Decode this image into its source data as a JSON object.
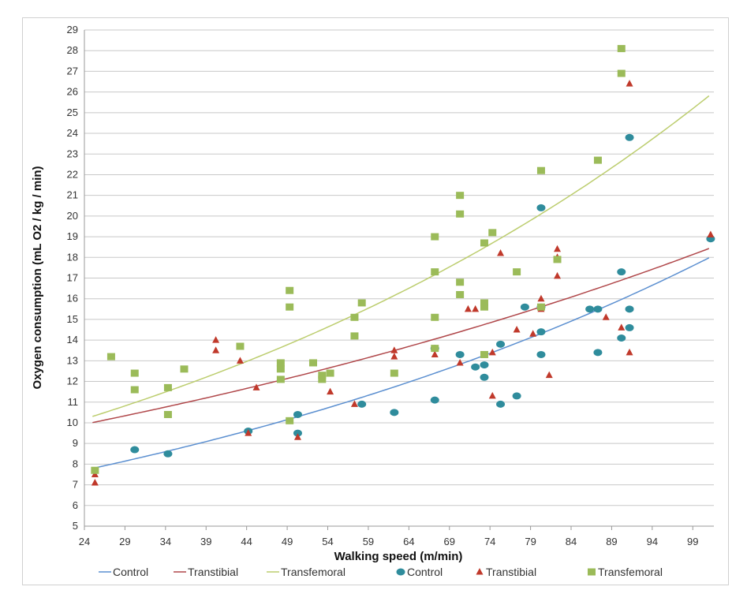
{
  "chart_data": {
    "type": "scatter",
    "title": "",
    "xlabel": "Walking speed (m/min)",
    "ylabel": "Oxygen consumption (mL O2 / kg / min)",
    "xlim": [
      24,
      101.6
    ],
    "ylim": [
      5,
      29
    ],
    "xticks": [
      24,
      29,
      34,
      39,
      44,
      49,
      54,
      59,
      64,
      69,
      74,
      79,
      84,
      89,
      94,
      99
    ],
    "yticks": [
      5,
      6,
      7,
      8,
      9,
      10,
      11,
      12,
      13,
      14,
      15,
      16,
      17,
      18,
      19,
      20,
      21,
      22,
      23,
      24,
      25,
      26,
      27,
      28,
      29
    ],
    "grid": "horizontal",
    "legend_position": "bottom",
    "colors": {
      "control_line": "#5b8fd0",
      "transtibial_line": "#b0474a",
      "transfemoral_line": "#bccd6e",
      "control_marker": "#2f8c9c",
      "transtibial_marker": "#c0392b",
      "transfemoral_marker": "#9bbb59"
    },
    "trendlines": [
      {
        "name": "Control",
        "type": "exponential",
        "a": 5.92,
        "b": 0.011,
        "x_range": [
          25,
          101
        ],
        "color_key": "control_line"
      },
      {
        "name": "Transtibial",
        "type": "exponential",
        "a": 8.19,
        "b": 0.00803,
        "x_range": [
          25,
          101
        ],
        "color_key": "transtibial_line"
      },
      {
        "name": "Transfemoral",
        "type": "exponential",
        "a": 7.62,
        "b": 0.01208,
        "x_range": [
          25,
          101
        ],
        "color_key": "transfemoral_line"
      }
    ],
    "series": [
      {
        "name": "Control",
        "marker": "circle",
        "color_key": "control_marker",
        "points": [
          [
            30.2,
            8.7
          ],
          [
            34.3,
            8.5
          ],
          [
            44.2,
            9.6
          ],
          [
            50.3,
            10.4
          ],
          [
            50.3,
            9.5
          ],
          [
            58.2,
            10.9
          ],
          [
            62.2,
            10.5
          ],
          [
            67.2,
            11.1
          ],
          [
            67.2,
            13.6
          ],
          [
            70.3,
            13.3
          ],
          [
            72.2,
            12.7
          ],
          [
            73.3,
            12.8
          ],
          [
            73.3,
            12.2
          ],
          [
            75.3,
            10.9
          ],
          [
            75.3,
            13.8
          ],
          [
            77.3,
            11.3
          ],
          [
            78.3,
            15.6
          ],
          [
            80.3,
            13.3
          ],
          [
            80.3,
            14.4
          ],
          [
            80.3,
            20.4
          ],
          [
            80.3,
            15.6
          ],
          [
            86.3,
            15.5
          ],
          [
            87.3,
            15.5
          ],
          [
            87.3,
            13.4
          ],
          [
            90.2,
            17.3
          ],
          [
            90.2,
            14.1
          ],
          [
            91.2,
            23.8
          ],
          [
            91.2,
            15.5
          ],
          [
            91.2,
            14.6
          ],
          [
            101.2,
            18.9
          ]
        ]
      },
      {
        "name": "Transtibial",
        "marker": "triangle",
        "color_key": "transtibial_marker",
        "points": [
          [
            25.3,
            7.5
          ],
          [
            25.3,
            7.1
          ],
          [
            40.2,
            14.0
          ],
          [
            40.2,
            13.5
          ],
          [
            43.2,
            13.0
          ],
          [
            44.2,
            9.5
          ],
          [
            45.2,
            11.7
          ],
          [
            50.3,
            9.3
          ],
          [
            54.3,
            11.5
          ],
          [
            57.3,
            10.9
          ],
          [
            62.2,
            13.5
          ],
          [
            62.2,
            13.2
          ],
          [
            67.2,
            13.3
          ],
          [
            70.3,
            12.9
          ],
          [
            71.3,
            15.5
          ],
          [
            72.2,
            15.5
          ],
          [
            74.3,
            13.4
          ],
          [
            74.3,
            11.3
          ],
          [
            75.3,
            18.2
          ],
          [
            77.3,
            14.5
          ],
          [
            79.3,
            14.3
          ],
          [
            80.3,
            16.0
          ],
          [
            80.3,
            15.5
          ],
          [
            81.3,
            12.3
          ],
          [
            82.3,
            18.4
          ],
          [
            82.3,
            18.0
          ],
          [
            82.3,
            17.1
          ],
          [
            88.3,
            15.1
          ],
          [
            90.2,
            14.6
          ],
          [
            91.2,
            26.4
          ],
          [
            91.2,
            13.4
          ],
          [
            101.2,
            19.1
          ]
        ]
      },
      {
        "name": "Transfemoral",
        "marker": "square",
        "color_key": "transfemoral_marker",
        "points": [
          [
            25.3,
            7.7
          ],
          [
            27.3,
            13.2
          ],
          [
            30.2,
            12.4
          ],
          [
            30.2,
            11.6
          ],
          [
            34.3,
            11.7
          ],
          [
            34.3,
            10.4
          ],
          [
            36.3,
            12.6
          ],
          [
            43.2,
            13.7
          ],
          [
            48.2,
            12.9
          ],
          [
            48.2,
            12.6
          ],
          [
            48.2,
            12.1
          ],
          [
            49.3,
            16.4
          ],
          [
            49.3,
            15.6
          ],
          [
            49.3,
            10.1
          ],
          [
            52.2,
            12.9
          ],
          [
            53.3,
            12.3
          ],
          [
            53.3,
            12.1
          ],
          [
            54.3,
            12.4
          ],
          [
            57.3,
            15.1
          ],
          [
            57.3,
            14.2
          ],
          [
            58.2,
            15.8
          ],
          [
            62.2,
            12.4
          ],
          [
            67.2,
            19.0
          ],
          [
            67.2,
            17.3
          ],
          [
            67.2,
            15.1
          ],
          [
            67.2,
            13.6
          ],
          [
            70.3,
            21.0
          ],
          [
            70.3,
            20.1
          ],
          [
            70.3,
            16.8
          ],
          [
            70.3,
            16.2
          ],
          [
            73.3,
            18.7
          ],
          [
            73.3,
            15.8
          ],
          [
            73.3,
            15.6
          ],
          [
            73.3,
            13.3
          ],
          [
            74.3,
            19.2
          ],
          [
            77.3,
            17.3
          ],
          [
            80.3,
            22.2
          ],
          [
            80.3,
            15.6
          ],
          [
            82.3,
            17.9
          ],
          [
            87.3,
            22.7
          ],
          [
            90.2,
            28.1
          ],
          [
            90.2,
            26.9
          ]
        ]
      }
    ],
    "legend": [
      {
        "label": "Control",
        "kind": "line",
        "color_key": "control_line"
      },
      {
        "label": "Transtibial",
        "kind": "line",
        "color_key": "transtibial_line"
      },
      {
        "label": "Transfemoral",
        "kind": "line",
        "color_key": "transfemoral_line"
      },
      {
        "label": "Control",
        "kind": "circle",
        "color_key": "control_marker"
      },
      {
        "label": "Transtibial",
        "kind": "triangle",
        "color_key": "transtibial_marker"
      },
      {
        "label": "Transfemoral",
        "kind": "square",
        "color_key": "transfemoral_marker"
      }
    ]
  }
}
